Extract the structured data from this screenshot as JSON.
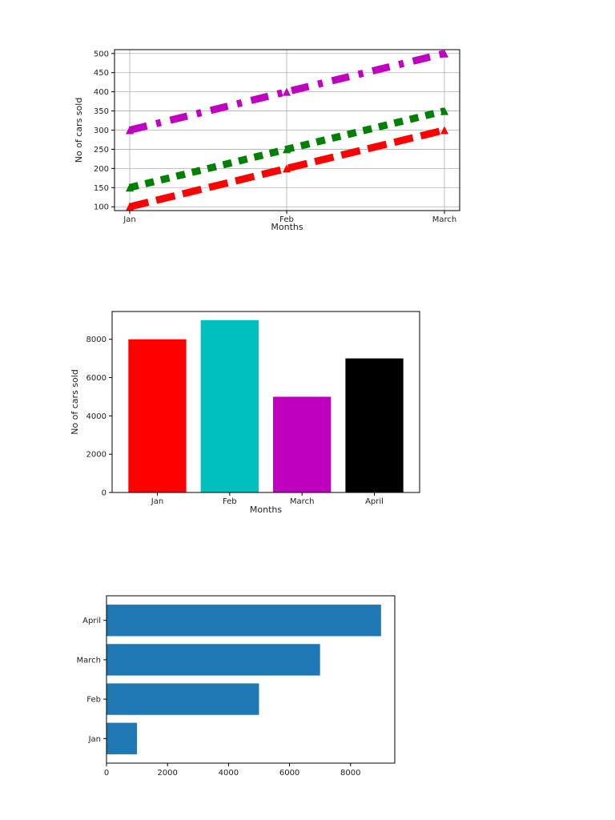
{
  "chart_data": [
    {
      "type": "line",
      "xlabel": "Months",
      "ylabel": "No of cars sold",
      "categories": [
        "Jan",
        "Feb",
        "March"
      ],
      "ylim": [
        90,
        510
      ],
      "yticks": [
        100,
        150,
        200,
        250,
        300,
        350,
        400,
        450,
        500
      ],
      "grid": true,
      "series": [
        {
          "values": [
            300,
            400,
            500
          ],
          "color": "#bf00bf",
          "linestyle": "dash-dot"
        },
        {
          "values": [
            150,
            250,
            350
          ],
          "color": "#008000",
          "linestyle": "dotted"
        },
        {
          "values": [
            100,
            200,
            300
          ],
          "color": "#ff0000",
          "linestyle": "dashed"
        }
      ]
    },
    {
      "type": "bar",
      "xlabel": "Months",
      "ylabel": "No of cars sold",
      "categories": [
        "Jan",
        "Feb",
        "March",
        "April"
      ],
      "values": [
        8000,
        9000,
        5000,
        7000
      ],
      "colors": [
        "#ff0000",
        "#00bfbf",
        "#bf00bf",
        "#000000"
      ],
      "ylim": [
        0,
        9450
      ],
      "yticks": [
        0,
        2000,
        4000,
        6000,
        8000
      ],
      "grid": false
    },
    {
      "type": "bar",
      "orientation": "horizontal",
      "xlabel": "",
      "ylabel": "",
      "categories": [
        "Jan",
        "Feb",
        "March",
        "April"
      ],
      "values": [
        1000,
        5000,
        7000,
        9000
      ],
      "color": "#1f77b4",
      "xlim": [
        0,
        9450
      ],
      "xticks": [
        0,
        2000,
        4000,
        6000,
        8000
      ],
      "grid": false
    }
  ]
}
